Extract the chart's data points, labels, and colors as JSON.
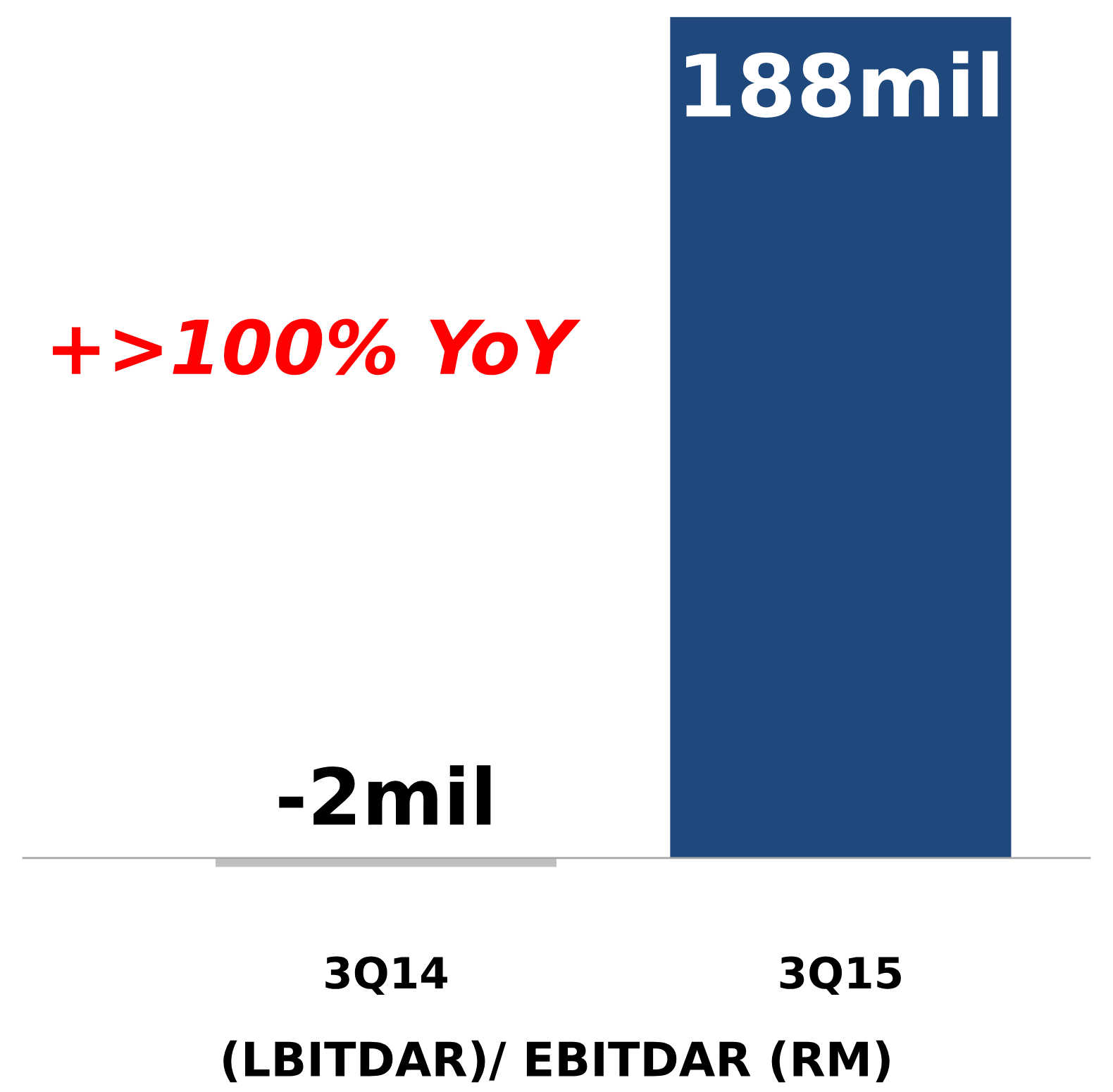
{
  "chart_data": {
    "type": "bar",
    "xlabel": "(LBITDAR)/ EBITDAR (RM)",
    "categories": [
      "3Q14",
      "3Q15"
    ],
    "values": [
      -2,
      188
    ],
    "colors": [
      "#bfbfbf",
      "#1f497d"
    ],
    "value_labels": [
      "-2mil",
      "188mil"
    ],
    "annotations": [
      "+>100% YoY"
    ],
    "grid": false,
    "legend": false
  }
}
